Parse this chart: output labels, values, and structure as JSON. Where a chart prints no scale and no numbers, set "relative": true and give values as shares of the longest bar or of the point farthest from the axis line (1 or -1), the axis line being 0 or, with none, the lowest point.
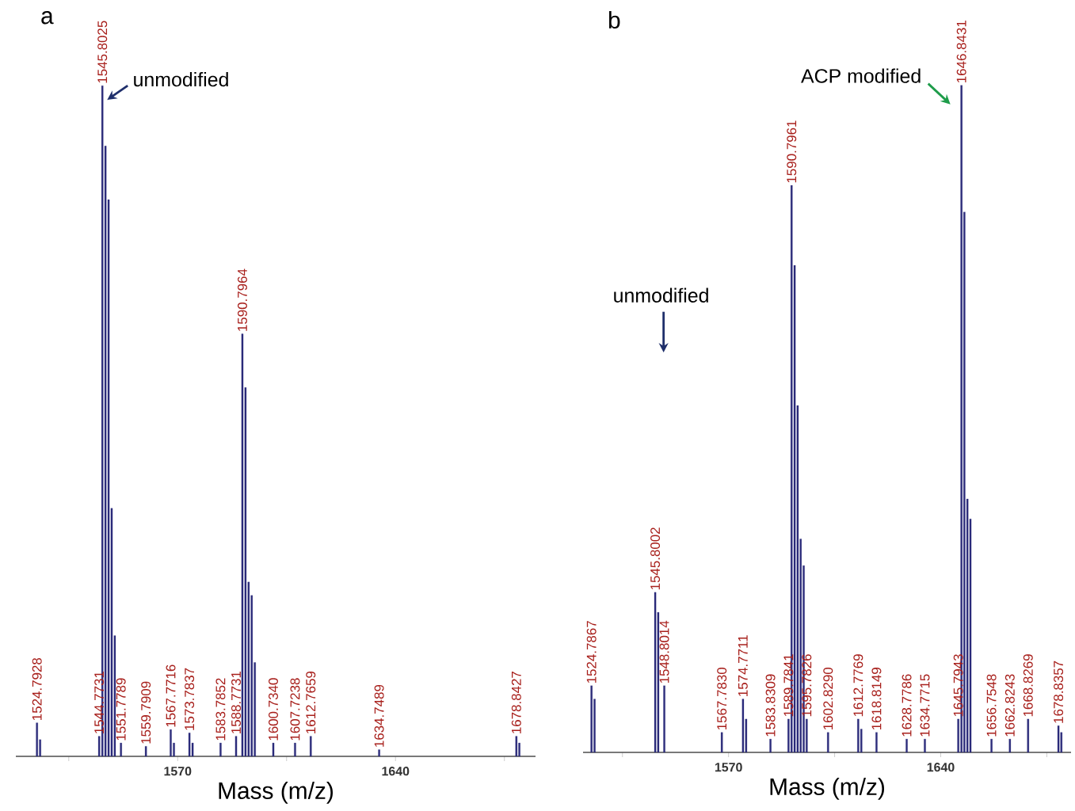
{
  "chart_data": [
    {
      "type": "bar",
      "title": "a",
      "xlabel": "Mass (m/z)",
      "relative": true,
      "color": "#2b2b7a",
      "x": [
        1524.7928,
        1525.8,
        1544.7731,
        1545.8025,
        1546.8,
        1547.8,
        1548.8,
        1549.8,
        1551.7789,
        1559.7909,
        1567.7716,
        1568.8,
        1573.7837,
        1574.8,
        1583.7852,
        1588.7731,
        1590.7964,
        1591.8,
        1592.8,
        1593.8,
        1594.8,
        1600.734,
        1607.7238,
        1612.7659,
        1634.7489,
        1678.8427,
        1679.8
      ],
      "values": [
        0.05,
        0.025,
        0.03,
        1.0,
        0.91,
        0.83,
        0.37,
        0.18,
        0.02,
        0.015,
        0.04,
        0.02,
        0.035,
        0.02,
        0.02,
        0.03,
        0.63,
        0.55,
        0.26,
        0.24,
        0.14,
        0.02,
        0.02,
        0.03,
        0.01,
        0.03,
        0.02
      ],
      "xlim": [
        1518,
        1685
      ],
      "xticks": [
        {
          "value": 1535,
          "label": null
        },
        1570,
        {
          "value": 1605,
          "label": null
        },
        1640,
        {
          "value": 1675,
          "label": null
        }
      ],
      "annotations": [
        {
          "text": "unmodified",
          "x": 1545.8025,
          "y": 1.0
        },
        {
          "text": "1524.7928",
          "x": 1524.7928,
          "y": 0.05
        },
        {
          "text": "1544.7731",
          "x": 1544.7731,
          "y": 0.03
        },
        {
          "text": "1545.8025",
          "x": 1545.8025,
          "y": 1.0
        },
        {
          "text": "1551.7789",
          "x": 1551.7789,
          "y": 0.02
        },
        {
          "text": "1559.7909",
          "x": 1559.7909,
          "y": 0.015
        },
        {
          "text": "1567.7716",
          "x": 1567.7716,
          "y": 0.04
        },
        {
          "text": "1573.7837",
          "x": 1573.7837,
          "y": 0.035
        },
        {
          "text": "1583.7852",
          "x": 1583.7852,
          "y": 0.02
        },
        {
          "text": "1588.7731",
          "x": 1588.7731,
          "y": 0.03
        },
        {
          "text": "1590.7964",
          "x": 1590.7964,
          "y": 0.63
        },
        {
          "text": "1600.7340",
          "x": 1600.734,
          "y": 0.02
        },
        {
          "text": "1607.7238",
          "x": 1607.7238,
          "y": 0.02
        },
        {
          "text": "1612.7659",
          "x": 1612.7659,
          "y": 0.03
        },
        {
          "text": "1634.7489",
          "x": 1634.7489,
          "y": 0.01
        },
        {
          "text": "1678.8427",
          "x": 1678.8427,
          "y": 0.03
        }
      ]
    },
    {
      "type": "bar",
      "title": "b",
      "xlabel": "Mass (m/z)",
      "relative": true,
      "color": "#2b2b7a",
      "x": [
        1524.7867,
        1525.8,
        1545.8002,
        1546.8,
        1548.8014,
        1567.783,
        1574.7711,
        1575.8,
        1583.8309,
        1589.7841,
        1590.7961,
        1591.8,
        1592.8,
        1593.8,
        1594.8,
        1595.7826,
        1602.829,
        1612.7769,
        1613.8,
        1618.8149,
        1628.7786,
        1634.7715,
        1645.7943,
        1646.8431,
        1647.8,
        1648.8,
        1649.8,
        1656.7548,
        1662.8243,
        1668.8269,
        1678.8357,
        1679.8
      ],
      "values": [
        0.1,
        0.08,
        0.24,
        0.21,
        0.1,
        0.03,
        0.08,
        0.05,
        0.02,
        0.05,
        0.85,
        0.73,
        0.52,
        0.32,
        0.28,
        0.05,
        0.03,
        0.05,
        0.035,
        0.03,
        0.02,
        0.02,
        0.05,
        1.0,
        0.81,
        0.38,
        0.35,
        0.02,
        0.02,
        0.05,
        0.04,
        0.03
      ],
      "xlim": [
        1522,
        1683
      ],
      "xticks": [
        {
          "value": 1535,
          "label": null
        },
        1570,
        {
          "value": 1605,
          "label": null
        },
        1640,
        {
          "value": 1675,
          "label": null
        }
      ],
      "annotations": [
        "unmodified",
        {
          "text": "ACP modified",
          "x": 1646.8431,
          "y": 1.0
        },
        {
          "text": "1524.7867",
          "x": 1524.7867,
          "y": 0.1
        },
        {
          "text": "1545.8002",
          "x": 1545.8002,
          "y": 0.24
        },
        {
          "text": "1548.8014",
          "x": 1548.8014,
          "y": 0.1
        },
        {
          "text": "1567.7830",
          "x": 1567.783,
          "y": 0.03
        },
        {
          "text": "1574.7711",
          "x": 1574.7711,
          "y": 0.08
        },
        {
          "text": "1583.8309",
          "x": 1583.8309,
          "y": 0.02
        },
        {
          "text": "1589.7841",
          "x": 1589.7841,
          "y": 0.05
        },
        {
          "text": "1590.7961",
          "x": 1590.7961,
          "y": 0.85
        },
        {
          "text": "1595.7826",
          "x": 1595.7826,
          "y": 0.05
        },
        {
          "text": "1602.8290",
          "x": 1602.829,
          "y": 0.03
        },
        {
          "text": "1612.7769",
          "x": 1612.7769,
          "y": 0.05
        },
        {
          "text": "1618.8149",
          "x": 1618.8149,
          "y": 0.03
        },
        {
          "text": "1628.7786",
          "x": 1628.7786,
          "y": 0.02
        },
        {
          "text": "1634.7715",
          "x": 1634.7715,
          "y": 0.02
        },
        {
          "text": "1645.7943",
          "x": 1645.7943,
          "y": 0.05
        },
        {
          "text": "1646.8431",
          "x": 1646.8431,
          "y": 1.0
        },
        {
          "text": "1656.7548",
          "x": 1656.7548,
          "y": 0.02
        },
        {
          "text": "1662.8243",
          "x": 1662.8243,
          "y": 0.02
        },
        {
          "text": "1668.8269",
          "x": 1668.8269,
          "y": 0.05
        },
        {
          "text": "1678.8357",
          "x": 1678.8357,
          "y": 0.04
        }
      ]
    }
  ]
}
